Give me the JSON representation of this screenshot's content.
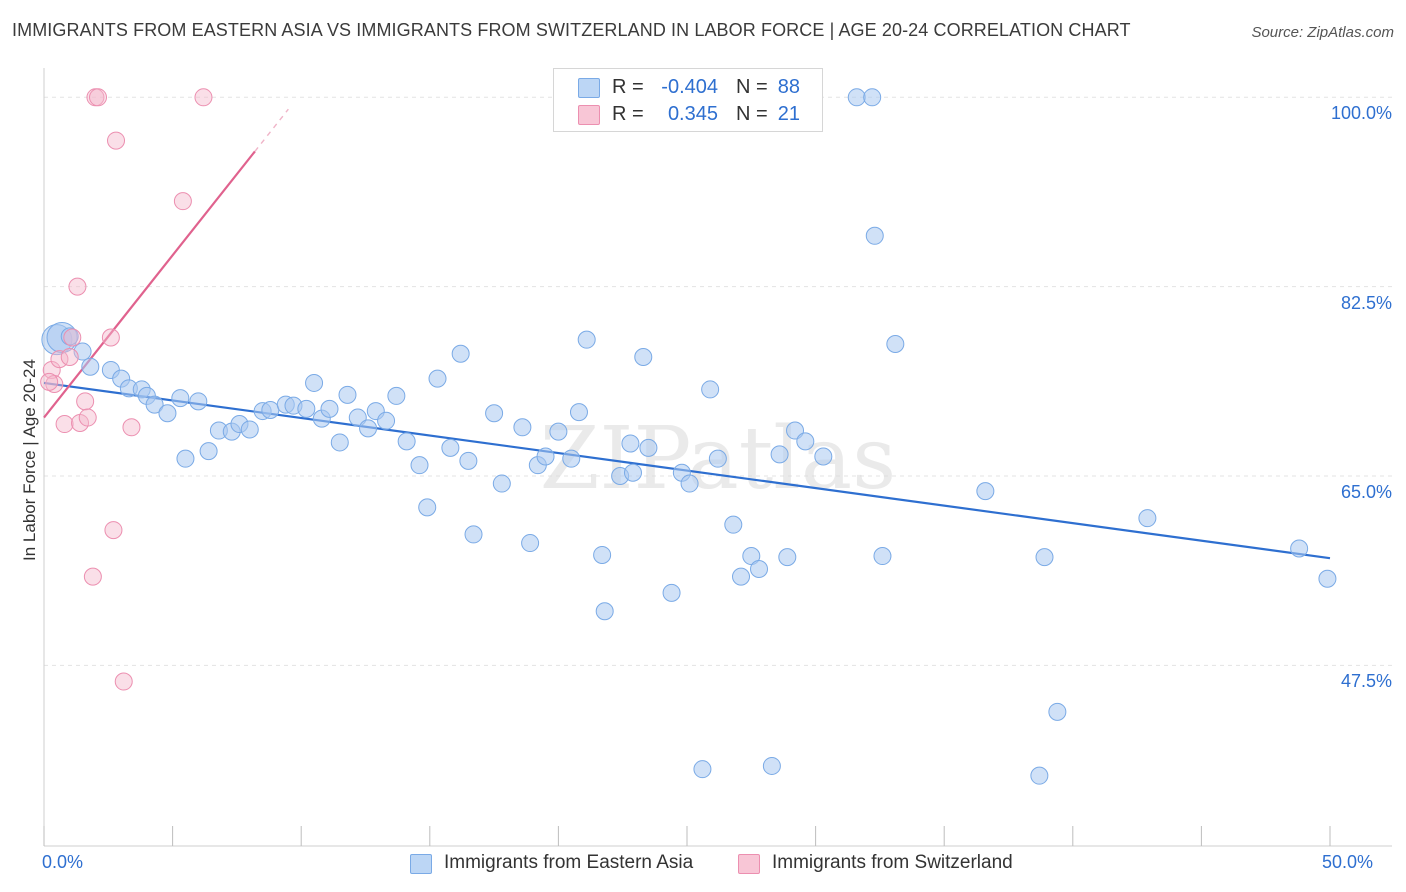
{
  "title": "IMMIGRANTS FROM EASTERN ASIA VS IMMIGRANTS FROM SWITZERLAND IN LABOR FORCE | AGE 20-24 CORRELATION CHART",
  "source": "Source: ZipAtlas.com",
  "watermark": "ZIPatlas",
  "legend": {
    "rows": [
      {
        "r_label": "R =",
        "r_value": "-0.404",
        "n_label": "N =",
        "n_value": "88"
      },
      {
        "r_label": "R =",
        "r_value": "0.345",
        "n_label": "N =",
        "n_value": "21"
      }
    ]
  },
  "colors": {
    "blue_fill": "#a9c8f0",
    "blue_stroke": "#7aaae6",
    "blue_line": "#2e6fd0",
    "pink_fill": "#f5b8cc",
    "pink_stroke": "#ec8fb0",
    "pink_line": "#e0628e",
    "tick_text": "#2e6fd0",
    "grid": "#e3e3e3"
  },
  "chart_data": {
    "type": "scatter",
    "xlabel": "",
    "ylabel": "In Labor Force | Age 20-24",
    "x_tick_labels": [
      "0.0%",
      "50.0%"
    ],
    "y_tick_labels": [
      "100.0%",
      "82.5%",
      "65.0%",
      "47.5%"
    ],
    "y_ticks": [
      100.0,
      82.5,
      65.0,
      47.5
    ],
    "xlim": [
      0,
      50
    ],
    "ylim": [
      30.8,
      101.6
    ],
    "grid": true,
    "legend_position": "top-center",
    "series": [
      {
        "name": "Immigrants from Eastern Asia",
        "color": "#a9c8f0",
        "trend": {
          "x": [
            0,
            50
          ],
          "y": [
            73.6,
            57.4
          ]
        },
        "points": [
          [
            0.5,
            77.6
          ],
          [
            0.7,
            77.8
          ],
          [
            1.0,
            77.9
          ],
          [
            1.5,
            76.5
          ],
          [
            1.8,
            75.1
          ],
          [
            2.6,
            74.8
          ],
          [
            3.0,
            74.0
          ],
          [
            3.3,
            73.1
          ],
          [
            3.8,
            73.0
          ],
          [
            4.0,
            72.4
          ],
          [
            4.3,
            71.6
          ],
          [
            4.8,
            70.8
          ],
          [
            5.3,
            72.2
          ],
          [
            5.5,
            66.6
          ],
          [
            6.0,
            71.9
          ],
          [
            6.4,
            67.3
          ],
          [
            6.8,
            69.2
          ],
          [
            7.3,
            69.1
          ],
          [
            7.6,
            69.8
          ],
          [
            8.0,
            69.3
          ],
          [
            8.5,
            71.0
          ],
          [
            8.8,
            71.1
          ],
          [
            9.4,
            71.6
          ],
          [
            9.7,
            71.5
          ],
          [
            10.2,
            71.2
          ],
          [
            10.5,
            73.6
          ],
          [
            10.8,
            70.3
          ],
          [
            11.1,
            71.2
          ],
          [
            11.5,
            68.1
          ],
          [
            11.8,
            72.5
          ],
          [
            12.2,
            70.4
          ],
          [
            12.6,
            69.4
          ],
          [
            12.9,
            71.0
          ],
          [
            13.3,
            70.1
          ],
          [
            13.7,
            72.4
          ],
          [
            14.1,
            68.2
          ],
          [
            14.6,
            66.0
          ],
          [
            14.9,
            62.1
          ],
          [
            15.3,
            74.0
          ],
          [
            15.8,
            67.6
          ],
          [
            16.2,
            76.3
          ],
          [
            16.5,
            66.4
          ],
          [
            16.7,
            59.6
          ],
          [
            17.5,
            70.8
          ],
          [
            17.8,
            64.3
          ],
          [
            18.6,
            69.5
          ],
          [
            18.9,
            58.8
          ],
          [
            19.2,
            66.0
          ],
          [
            19.5,
            66.8
          ],
          [
            20.0,
            69.1
          ],
          [
            20.5,
            66.6
          ],
          [
            20.8,
            70.9
          ],
          [
            21.1,
            77.6
          ],
          [
            21.8,
            52.5
          ],
          [
            21.7,
            57.7
          ],
          [
            22.4,
            65.0
          ],
          [
            22.8,
            68.0
          ],
          [
            22.9,
            65.3
          ],
          [
            23.3,
            76.0
          ],
          [
            23.5,
            67.6
          ],
          [
            24.4,
            54.2
          ],
          [
            24.8,
            65.3
          ],
          [
            25.1,
            64.3
          ],
          [
            25.9,
            73.0
          ],
          [
            26.2,
            66.6
          ],
          [
            26.8,
            60.5
          ],
          [
            27.1,
            55.7
          ],
          [
            27.5,
            57.6
          ],
          [
            27.8,
            56.4
          ],
          [
            28.6,
            67.0
          ],
          [
            28.9,
            57.5
          ],
          [
            29.2,
            69.2
          ],
          [
            29.6,
            68.2
          ],
          [
            30.3,
            66.8
          ],
          [
            31.6,
            100.0
          ],
          [
            32.2,
            100.0
          ],
          [
            32.3,
            87.2
          ],
          [
            32.6,
            57.6
          ],
          [
            33.1,
            77.2
          ],
          [
            36.6,
            63.6
          ],
          [
            38.9,
            57.5
          ],
          [
            39.4,
            43.2
          ],
          [
            38.7,
            37.3
          ],
          [
            42.9,
            61.1
          ],
          [
            48.8,
            58.3
          ],
          [
            49.9,
            55.5
          ],
          [
            28.3,
            38.2
          ],
          [
            25.6,
            37.9
          ]
        ]
      },
      {
        "name": "Immigrants from Switzerland",
        "color": "#f5b8cc",
        "trend": {
          "x": [
            0,
            8.2
          ],
          "y": [
            70.4,
            95.0
          ],
          "dashed_to": {
            "x": 9.5,
            "y": 98.9
          }
        },
        "points": [
          [
            0.3,
            74.8
          ],
          [
            0.4,
            73.5
          ],
          [
            0.6,
            75.8
          ],
          [
            0.8,
            69.8
          ],
          [
            1.0,
            76.0
          ],
          [
            1.1,
            77.8
          ],
          [
            1.3,
            82.5
          ],
          [
            1.4,
            69.9
          ],
          [
            1.6,
            71.9
          ],
          [
            1.7,
            70.4
          ],
          [
            1.9,
            55.7
          ],
          [
            2.0,
            100.0
          ],
          [
            2.1,
            100.0
          ],
          [
            2.6,
            77.8
          ],
          [
            2.7,
            60.0
          ],
          [
            2.8,
            96.0
          ],
          [
            3.1,
            46.0
          ],
          [
            3.4,
            69.5
          ],
          [
            5.4,
            90.4
          ],
          [
            6.2,
            100.0
          ],
          [
            0.2,
            73.7
          ]
        ]
      }
    ]
  }
}
